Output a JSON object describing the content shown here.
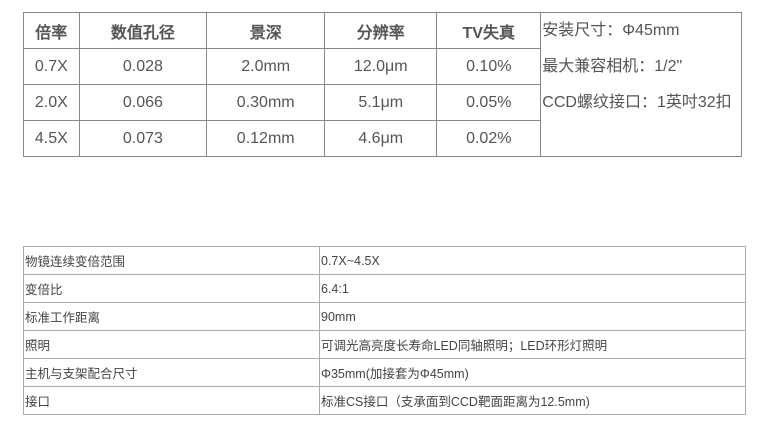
{
  "spec_table": {
    "headers": [
      "倍率",
      "数值孔径",
      "景深",
      "分辨率",
      "TV失真"
    ],
    "rows": [
      [
        "0.7X",
        "0.028",
        "2.0mm",
        "12.0μm",
        "0.10%"
      ],
      [
        "2.0X",
        "0.066",
        "0.30mm",
        "5.1μm",
        "0.05%"
      ],
      [
        "4.5X",
        "0.073",
        "0.12mm",
        "4.6μm",
        "0.02%"
      ]
    ],
    "side_notes": [
      "安装尺寸：Φ45mm",
      "最大兼容相机：1/2\"",
      "CCD螺纹接口：1英吋32扣"
    ]
  },
  "param_table": [
    {
      "key": "物镜连续变倍范围",
      "value": "0.7X~4.5X"
    },
    {
      "key": "变倍比",
      "value": "6.4:1"
    },
    {
      "key": "标准工作距离",
      "value": "90mm"
    },
    {
      "key": "照明",
      "value": "可调光高亮度长寿命LED同轴照明；LED环形灯照明"
    },
    {
      "key": "主机与支架配合尺寸",
      "value": "Φ35mm(加接套为Φ45mm)"
    },
    {
      "key": "接口",
      "value": "标准CS接口（支承面到CCD靶面距离为12.5mm)"
    }
  ]
}
